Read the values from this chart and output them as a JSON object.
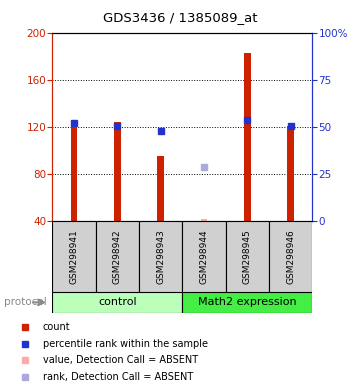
{
  "title": "GDS3436 / 1385089_at",
  "samples": [
    "GSM298941",
    "GSM298942",
    "GSM298943",
    "GSM298944",
    "GSM298945",
    "GSM298946"
  ],
  "ylim_left": [
    40,
    200
  ],
  "ylim_right": [
    0,
    100
  ],
  "yticks_left": [
    40,
    80,
    120,
    160,
    200
  ],
  "yticks_right": [
    0,
    25,
    50,
    75,
    100
  ],
  "ytick_labels_right": [
    "0",
    "25",
    "50",
    "75",
    "100%"
  ],
  "red_bars": [
    126,
    124,
    95,
    41,
    183,
    121
  ],
  "blue_squares_left": [
    123,
    121,
    116,
    null,
    126,
    121
  ],
  "pink_bar": [
    null,
    null,
    null,
    41.5,
    null,
    null
  ],
  "lavender_square_left": [
    null,
    null,
    null,
    86,
    null,
    null
  ],
  "bar_color": "#cc2200",
  "blue_color": "#2233cc",
  "pink_color": "#ffaaaa",
  "lavender_color": "#aaaadd",
  "left_axis_color": "#cc2200",
  "right_axis_color": "#2233cc",
  "control_color": "#bbffbb",
  "math2_color": "#44ee44",
  "sample_box_color": "#d0d0d0",
  "legend_items": [
    {
      "label": "count",
      "color": "#cc2200"
    },
    {
      "label": "percentile rank within the sample",
      "color": "#2233cc"
    },
    {
      "label": "value, Detection Call = ABSENT",
      "color": "#ffaaaa"
    },
    {
      "label": "rank, Detection Call = ABSENT",
      "color": "#aaaadd"
    }
  ]
}
